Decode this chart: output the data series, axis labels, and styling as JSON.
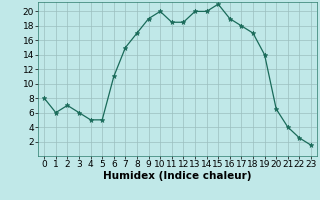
{
  "x": [
    0,
    1,
    2,
    3,
    4,
    5,
    6,
    7,
    8,
    9,
    10,
    11,
    12,
    13,
    14,
    15,
    16,
    17,
    18,
    19,
    20,
    21,
    22,
    23
  ],
  "y": [
    8,
    6,
    7,
    6,
    5,
    5,
    11,
    15,
    17,
    19,
    20,
    18.5,
    18.5,
    20,
    20,
    21,
    19,
    18,
    17,
    14,
    6.5,
    4,
    2.5,
    1.5
  ],
  "line_color": "#1a6b5a",
  "marker_color": "#1a6b5a",
  "bg_color": "#c0e8e8",
  "grid_color": "#9bbfbf",
  "xlabel": "Humidex (Indice chaleur)",
  "ylim": [
    0,
    21
  ],
  "xlim": [
    -0.5,
    23.5
  ],
  "yticks": [
    2,
    4,
    6,
    8,
    10,
    12,
    14,
    16,
    18,
    20
  ],
  "xticks": [
    0,
    1,
    2,
    3,
    4,
    5,
    6,
    7,
    8,
    9,
    10,
    11,
    12,
    13,
    14,
    15,
    16,
    17,
    18,
    19,
    20,
    21,
    22,
    23
  ],
  "tick_fontsize": 6.5,
  "xlabel_fontsize": 7.5
}
